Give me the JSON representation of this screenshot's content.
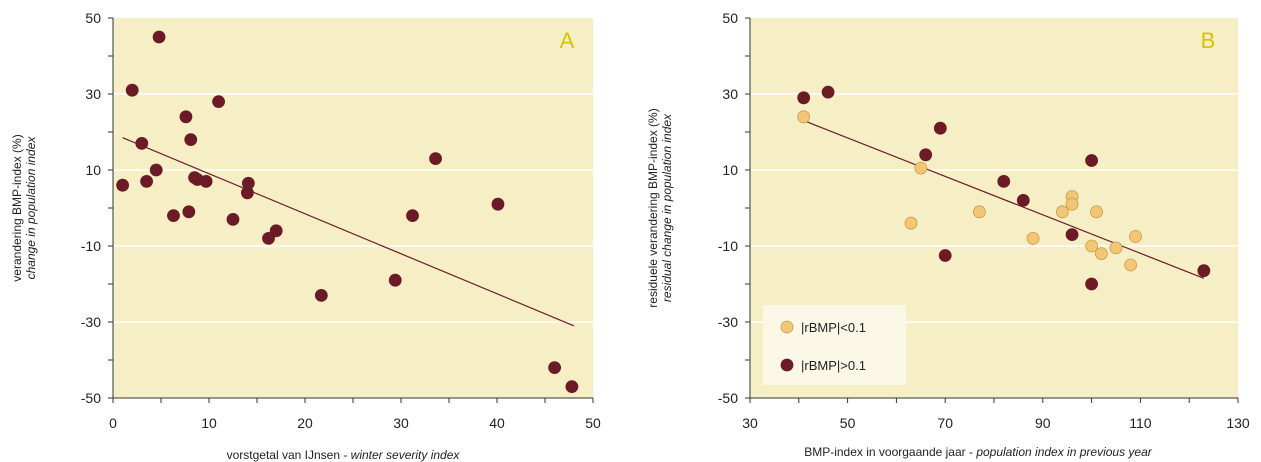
{
  "colors": {
    "plot_bg": "#f6efc6",
    "grid": "#ffffff",
    "dark_point": "#6b1a26",
    "light_point": "#f3c676",
    "light_point_stroke": "#c99a4a",
    "trend_line": "#6b1a26",
    "panel_letter": "#d8c200"
  },
  "chart_data": [
    {
      "type": "scatter",
      "panel_label": "A",
      "ylabel": "verandering BMP-index (%)",
      "ylabel_italic": "change in population index",
      "xlabel": "vorstgetal van IJnsen - ",
      "xlabel_italic": "winter severity index",
      "xlim": [
        0,
        50
      ],
      "ylim": [
        -50,
        50
      ],
      "xticks": [
        "0",
        "10",
        "20",
        "30",
        "40",
        "50"
      ],
      "yticks": [
        "50",
        "30",
        "10",
        "-10",
        "-30",
        "-50"
      ],
      "grid": "horizontal",
      "series": [
        {
          "color": "dark",
          "points": [
            [
              1,
              6
            ],
            [
              2,
              31
            ],
            [
              3,
              17
            ],
            [
              3.5,
              7
            ],
            [
              4.5,
              10
            ],
            [
              4.8,
              45
            ],
            [
              6.3,
              -2
            ],
            [
              7.6,
              24
            ],
            [
              7.9,
              -1
            ],
            [
              8.1,
              18
            ],
            [
              8.5,
              8
            ],
            [
              8.8,
              7.5
            ],
            [
              9.7,
              7
            ],
            [
              11,
              28
            ],
            [
              12.5,
              -3
            ],
            [
              14,
              4
            ],
            [
              14.1,
              6.5
            ],
            [
              16.2,
              -8
            ],
            [
              17,
              -6
            ],
            [
              21.7,
              -23
            ],
            [
              29.4,
              -19
            ],
            [
              31.2,
              -2
            ],
            [
              33.6,
              13
            ],
            [
              40.1,
              1
            ],
            [
              46,
              -42
            ],
            [
              47.8,
              -47
            ]
          ]
        }
      ],
      "trend_line": [
        [
          1,
          18.5
        ],
        [
          48,
          -31
        ]
      ]
    },
    {
      "type": "scatter",
      "panel_label": "B",
      "ylabel": "residuele verandering BMP-index (%)",
      "ylabel_italic": "residual change in population index",
      "xlabel": "BMP-index in voorgaande jaar - ",
      "xlabel_italic": "population index in previous year",
      "xlim": [
        30,
        130
      ],
      "ylim": [
        -50,
        50
      ],
      "xticks": [
        "30",
        "50",
        "70",
        "90",
        "110",
        "130"
      ],
      "yticks": [
        "50",
        "30",
        "10",
        "-10",
        "-30",
        "-50"
      ],
      "grid": "horizontal",
      "legend": {
        "placement": "bottom-left",
        "entries": [
          "|rBMP|<0.1",
          "|rBMP|>0.1"
        ]
      },
      "series": [
        {
          "name": "|rBMP|<0.1",
          "color": "light",
          "points": [
            [
              41,
              24
            ],
            [
              63,
              -4
            ],
            [
              65,
              10.5
            ],
            [
              77,
              -1
            ],
            [
              88,
              -8
            ],
            [
              94,
              -1
            ],
            [
              96,
              3
            ],
            [
              96,
              1
            ],
            [
              100,
              -10
            ],
            [
              101,
              -1
            ],
            [
              102,
              -12
            ],
            [
              105,
              -10.5
            ],
            [
              108,
              -15
            ],
            [
              109,
              -7.5
            ]
          ]
        },
        {
          "name": "|rBMP|>0.1",
          "color": "dark",
          "points": [
            [
              41,
              29
            ],
            [
              46,
              30.5
            ],
            [
              66,
              14
            ],
            [
              69,
              21
            ],
            [
              70,
              -12.5
            ],
            [
              82,
              7
            ],
            [
              86,
              2
            ],
            [
              96,
              -7
            ],
            [
              100,
              12.5
            ],
            [
              100,
              -20
            ],
            [
              123,
              -16.5
            ]
          ]
        }
      ],
      "trend_line": [
        [
          41,
          23
        ],
        [
          123,
          -18.5
        ]
      ]
    }
  ]
}
